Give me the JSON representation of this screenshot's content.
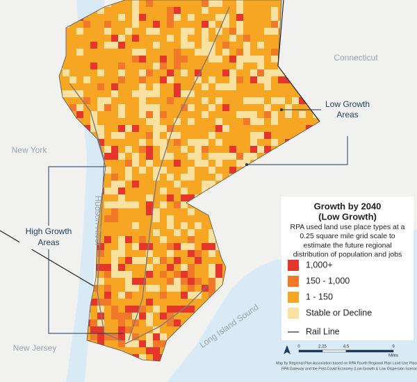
{
  "labels": {
    "connecticut": "Connecticut",
    "new_york": "New York",
    "new_jersey": "New Jersey",
    "hudson_river": "Hudson River",
    "long_island_sound": "Long Island Sound"
  },
  "callouts": {
    "low_growth": [
      "Low Growth",
      "Areas"
    ],
    "high_growth": [
      "High Growth",
      "Areas"
    ]
  },
  "legend": {
    "title": [
      "Growth by 2040",
      "(Low Growth)"
    ],
    "description": [
      "RPA used land use place types at a",
      "0.25 square mile grid scale to",
      "estimate the future regional",
      "distribution of population and jobs"
    ],
    "items": [
      {
        "label": "1,000+",
        "color": "#e5362c"
      },
      {
        "label": "150 - 1,000",
        "color": "#f07a2a"
      },
      {
        "label": "1 - 150",
        "color": "#f6a623"
      },
      {
        "label": "Stable or Decline",
        "color": "#fbe1a0"
      }
    ],
    "rail": {
      "label": "Rail Line",
      "color": "#7a7a82"
    }
  },
  "scale": {
    "ticks": [
      0,
      2.25,
      4.5,
      9
    ],
    "unit": "Miles"
  },
  "credit": [
    "Map by Regional Plan Association based on RPA Fourth Regional Plan Land Use Place Types,",
    "RPA Gateway and the Post-Covid Economy (Low Growth & Low Dispersion Scenario B)"
  ]
}
